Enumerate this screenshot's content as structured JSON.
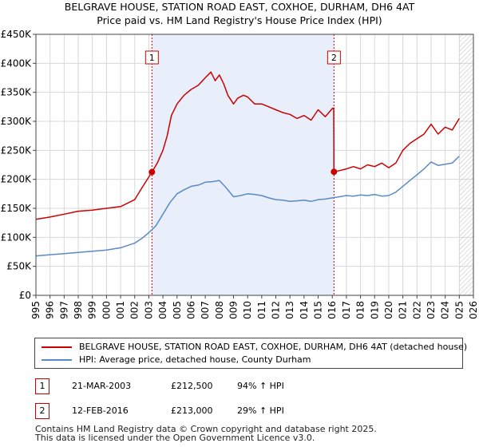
{
  "title_line1": "BELGRAVE HOUSE, STATION ROAD EAST, COXHOE, DURHAM, DH6 4AT",
  "title_line2": "Price paid vs. HM Land Registry's House Price Index (HPI)",
  "chart_data": {
    "type": "line",
    "xlim": [
      1995,
      2026
    ],
    "ylim": [
      0,
      450000
    ],
    "x_ticks": [
      1995,
      1996,
      1997,
      1998,
      1999,
      2000,
      2001,
      2002,
      2003,
      2004,
      2005,
      2006,
      2007,
      2008,
      2009,
      2010,
      2011,
      2012,
      2013,
      2014,
      2015,
      2016,
      2017,
      2018,
      2019,
      2020,
      2021,
      2022,
      2023,
      2024,
      2025,
      2026
    ],
    "y_ticks": [
      0,
      50000,
      100000,
      150000,
      200000,
      250000,
      300000,
      350000,
      400000,
      450000
    ],
    "y_tick_labels": [
      "£0",
      "£50K",
      "£100K",
      "£150K",
      "£200K",
      "£250K",
      "£300K",
      "£350K",
      "£400K",
      "£450K"
    ],
    "shaded_period": [
      2003.22,
      2016.12
    ],
    "hatched_from": 2025.0,
    "series": [
      {
        "name": "BELGRAVE HOUSE, STATION ROAD EAST, COXHOE, DURHAM, DH6 4AT (detached house)",
        "color": "#cc0000",
        "x": [
          1995.0,
          1996.0,
          1997.0,
          1998.0,
          1999.0,
          2000.0,
          2001.0,
          2002.0,
          2002.5,
          2003.22,
          2003.6,
          2004.0,
          2004.3,
          2004.6,
          2005.0,
          2005.5,
          2006.0,
          2006.5,
          2007.0,
          2007.4,
          2007.7,
          2008.0,
          2008.3,
          2008.6,
          2009.0,
          2009.3,
          2009.7,
          2010.0,
          2010.5,
          2011.0,
          2011.5,
          2012.0,
          2012.5,
          2013.0,
          2013.5,
          2014.0,
          2014.5,
          2015.0,
          2015.5,
          2016.0,
          2016.1,
          2016.12,
          2016.5,
          2017.0,
          2017.5,
          2018.0,
          2018.5,
          2019.0,
          2019.5,
          2020.0,
          2020.5,
          2021.0,
          2021.5,
          2022.0,
          2022.5,
          2023.0,
          2023.5,
          2024.0,
          2024.5,
          2025.0
        ],
        "y": [
          131000,
          135000,
          140000,
          145000,
          147000,
          150000,
          153000,
          165000,
          185000,
          212500,
          228000,
          250000,
          275000,
          310000,
          330000,
          345000,
          355000,
          362000,
          375000,
          385000,
          370000,
          380000,
          365000,
          345000,
          330000,
          340000,
          345000,
          342000,
          330000,
          330000,
          325000,
          320000,
          315000,
          312000,
          305000,
          310000,
          302000,
          320000,
          308000,
          322000,
          323000,
          213000,
          215000,
          218000,
          222000,
          218000,
          225000,
          222000,
          228000,
          220000,
          228000,
          250000,
          262000,
          270000,
          278000,
          295000,
          278000,
          290000,
          285000,
          305000
        ]
      },
      {
        "name": "HPI: Average price, detached house, County Durham",
        "color": "#5a8ac6",
        "x": [
          1995.0,
          1996.0,
          1997.0,
          1998.0,
          1999.0,
          2000.0,
          2001.0,
          2002.0,
          2002.5,
          2003.0,
          2003.5,
          2004.0,
          2004.5,
          2005.0,
          2005.5,
          2006.0,
          2006.5,
          2007.0,
          2007.5,
          2008.0,
          2008.5,
          2009.0,
          2009.5,
          2010.0,
          2010.5,
          2011.0,
          2011.5,
          2012.0,
          2012.5,
          2013.0,
          2013.5,
          2014.0,
          2014.5,
          2015.0,
          2015.5,
          2016.0,
          2016.5,
          2017.0,
          2017.5,
          2018.0,
          2018.5,
          2019.0,
          2019.5,
          2020.0,
          2020.5,
          2021.0,
          2021.5,
          2022.0,
          2022.5,
          2023.0,
          2023.5,
          2024.0,
          2024.5,
          2025.0
        ],
        "y": [
          68000,
          70000,
          72000,
          74000,
          76000,
          78000,
          82000,
          90000,
          98000,
          108000,
          120000,
          140000,
          160000,
          175000,
          182000,
          188000,
          190000,
          195000,
          196000,
          198000,
          185000,
          170000,
          172000,
          175000,
          174000,
          172000,
          168000,
          165000,
          164000,
          162000,
          163000,
          164000,
          162000,
          165000,
          166000,
          168000,
          170000,
          172000,
          171000,
          173000,
          172000,
          174000,
          171000,
          172000,
          178000,
          188000,
          198000,
          208000,
          218000,
          230000,
          224000,
          226000,
          228000,
          240000
        ]
      }
    ],
    "annotations": [
      {
        "label": "1",
        "x": 2003.22,
        "y": 212500
      },
      {
        "label": "2",
        "x": 2016.12,
        "y": 213000
      }
    ]
  },
  "legend": {
    "entries": [
      {
        "label": "BELGRAVE HOUSE, STATION ROAD EAST, COXHOE, DURHAM, DH6 4AT (detached house)",
        "color": "#cc0000"
      },
      {
        "label": "HPI: Average price, detached house, County Durham",
        "color": "#5a8ac6"
      }
    ]
  },
  "transactions": [
    {
      "num": "1",
      "date": "21-MAR-2003",
      "price": "£212,500",
      "hpi": "94% ↑ HPI"
    },
    {
      "num": "2",
      "date": "12-FEB-2016",
      "price": "£213,000",
      "hpi": "29% ↑ HPI"
    }
  ],
  "footer_line1": "Contains HM Land Registry data © Crown copyright and database right 2025.",
  "footer_line2": "This data is licensed under the Open Government Licence v3.0."
}
